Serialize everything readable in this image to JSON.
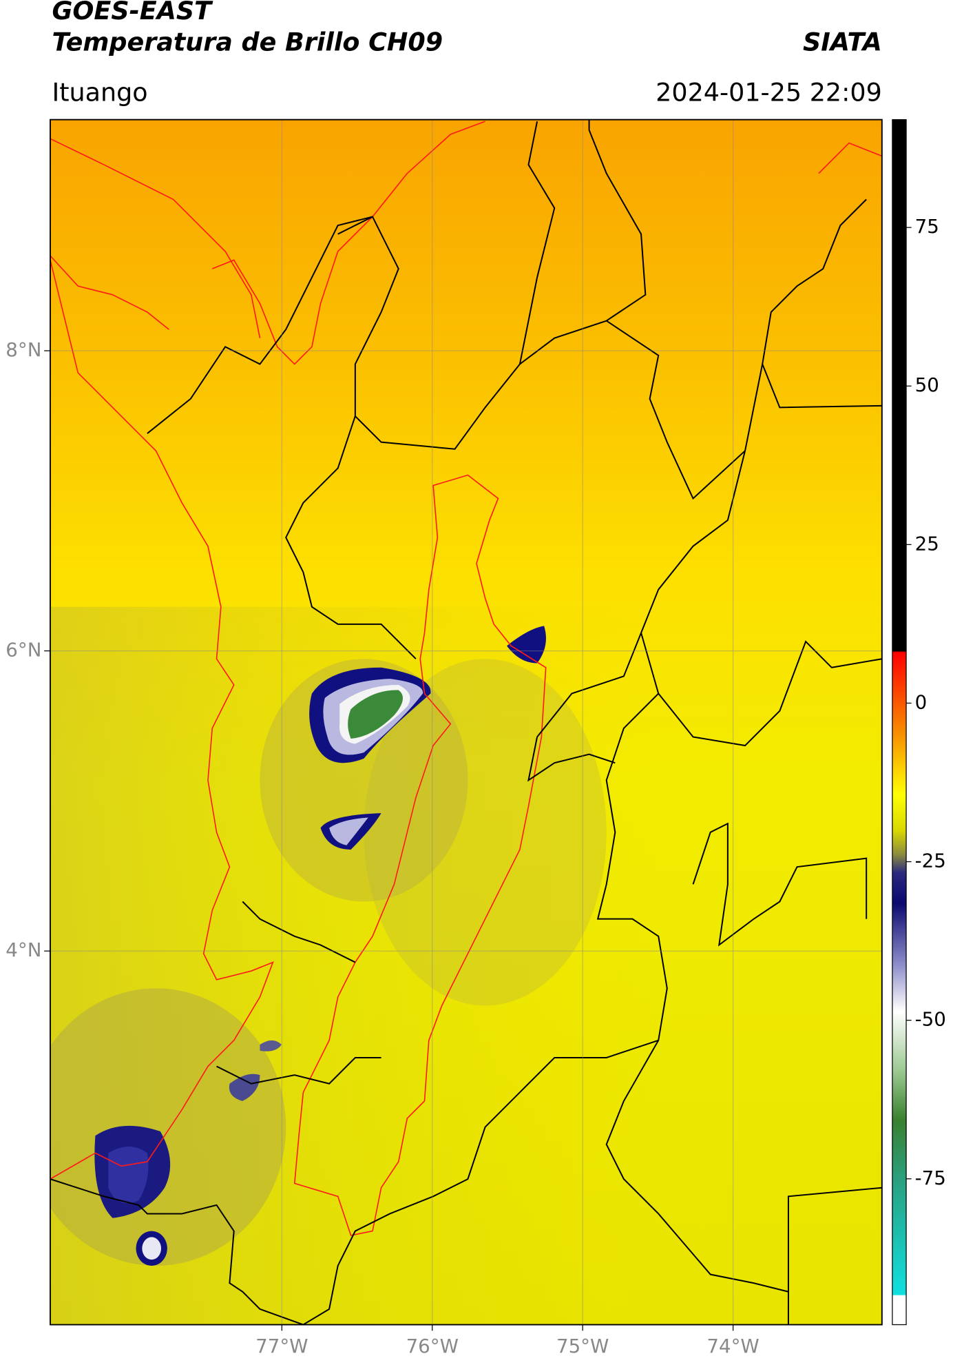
{
  "map": {
    "title": "GOES-EAST",
    "subtitle": "Temperatura de Brillo CH09",
    "source": "SIATA",
    "location": "Ituango",
    "datetime": "2024-01-25 22:09",
    "lon_range": [
      -78.54,
      -73.01
    ],
    "lat_range": [
      1.51,
      9.54
    ],
    "lon_ticks": [
      {
        "value": -77,
        "label": "77°W"
      },
      {
        "value": -76,
        "label": "76°W"
      },
      {
        "value": -75,
        "label": "75°W"
      },
      {
        "value": -74,
        "label": "74°W"
      }
    ],
    "lat_ticks": [
      {
        "value": 8,
        "label": "8°N"
      },
      {
        "value": 6,
        "label": "6°N"
      },
      {
        "value": 4,
        "label": "4°N"
      }
    ],
    "colorbar": {
      "range": [
        -98,
        92
      ],
      "ticks": [
        75,
        50,
        25,
        0,
        -25,
        -50,
        -75
      ]
    }
  }
}
